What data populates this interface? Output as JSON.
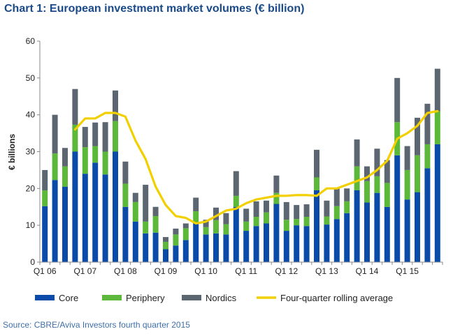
{
  "title": "Chart 1: European investment market volumes (€ billion)",
  "source": "Source: CBRE/Aviva Investors fourth quarter 2015",
  "colors": {
    "core": "#0a4aa8",
    "periphery": "#5cb838",
    "nordics": "#5c6670",
    "rolling": "#f2d000",
    "title": "#1a4a8a",
    "source": "#3f6faa"
  },
  "chart_data": {
    "type": "bar",
    "stacked": true,
    "ylabel": "€ billions",
    "ylim": [
      0,
      60
    ],
    "yticks": [
      0,
      10,
      20,
      30,
      40,
      50,
      60
    ],
    "xtick_labels": [
      "Q1 06",
      "Q1 07",
      "Q1 08",
      "Q1 09",
      "Q1 10",
      "Q1 11",
      "Q1 12",
      "Q1 13",
      "Q1 14",
      "Q1 15"
    ],
    "categories": [
      "Q1 06",
      "Q2 06",
      "Q3 06",
      "Q4 06",
      "Q1 07",
      "Q2 07",
      "Q3 07",
      "Q4 07",
      "Q1 08",
      "Q2 08",
      "Q3 08",
      "Q4 08",
      "Q1 09",
      "Q2 09",
      "Q3 09",
      "Q4 09",
      "Q1 10",
      "Q2 10",
      "Q3 10",
      "Q4 10",
      "Q1 11",
      "Q2 11",
      "Q3 11",
      "Q4 11",
      "Q1 12",
      "Q2 12",
      "Q3 12",
      "Q4 12",
      "Q1 13",
      "Q2 13",
      "Q3 13",
      "Q4 13",
      "Q1 14",
      "Q2 14",
      "Q3 14",
      "Q4 14",
      "Q1 15",
      "Q2 15",
      "Q3 15",
      "Q4 15"
    ],
    "series": [
      {
        "name": "Core",
        "values": [
          15.2,
          22.3,
          20.5,
          30.0,
          24.0,
          27.0,
          23.8,
          30.0,
          15.0,
          11.0,
          7.8,
          8.0,
          3.5,
          4.5,
          6.0,
          10.5,
          7.5,
          7.8,
          7.5,
          15.0,
          8.5,
          9.8,
          10.5,
          15.8,
          8.5,
          10.0,
          9.8,
          19.5,
          10.2,
          11.7,
          13.3,
          19.5,
          16.2,
          18.8,
          15.0,
          29.0,
          17.0,
          19.0,
          25.5,
          32.0
        ]
      },
      {
        "name": "Periphery",
        "values": [
          4.3,
          7.2,
          5.5,
          7.3,
          7.2,
          4.5,
          6.2,
          8.3,
          6.3,
          5.3,
          3.2,
          4.5,
          2.0,
          3.0,
          3.2,
          3.3,
          2.0,
          3.6,
          2.8,
          3.0,
          2.5,
          2.5,
          3.0,
          3.0,
          3.0,
          1.7,
          2.5,
          3.5,
          2.2,
          3.5,
          3.2,
          6.5,
          5.8,
          4.5,
          6.5,
          9.0,
          8.0,
          10.0,
          6.5,
          9.0
        ]
      },
      {
        "name": "Nordics",
        "values": [
          5.5,
          10.5,
          5.0,
          9.7,
          5.5,
          6.4,
          8.0,
          8.3,
          6.0,
          2.5,
          10.0,
          2.5,
          1.3,
          1.6,
          1.3,
          3.7,
          2.0,
          3.4,
          3.0,
          6.7,
          3.5,
          4.2,
          3.2,
          4.7,
          4.8,
          3.8,
          3.4,
          7.5,
          4.3,
          4.8,
          3.5,
          7.3,
          4.0,
          7.5,
          6.2,
          12.0,
          6.5,
          10.2,
          11.0,
          11.5
        ]
      },
      {
        "name": "Four-quarter rolling average",
        "type": "line",
        "values": [
          null,
          null,
          null,
          36.0,
          39.0,
          39.0,
          40.5,
          40.5,
          39.5,
          33.0,
          28.0,
          20.5,
          15.5,
          12.5,
          12.0,
          10.5,
          11.0,
          12.5,
          14.0,
          14.5,
          16.0,
          17.0,
          17.5,
          18.0,
          18.0,
          18.2,
          18.2,
          18.0,
          20.0,
          20.0,
          21.0,
          22.0,
          23.0,
          25.0,
          27.5,
          33.5,
          35.0,
          37.0,
          40.5,
          41.0
        ]
      }
    ],
    "legend_position": "bottom",
    "grid": false
  }
}
